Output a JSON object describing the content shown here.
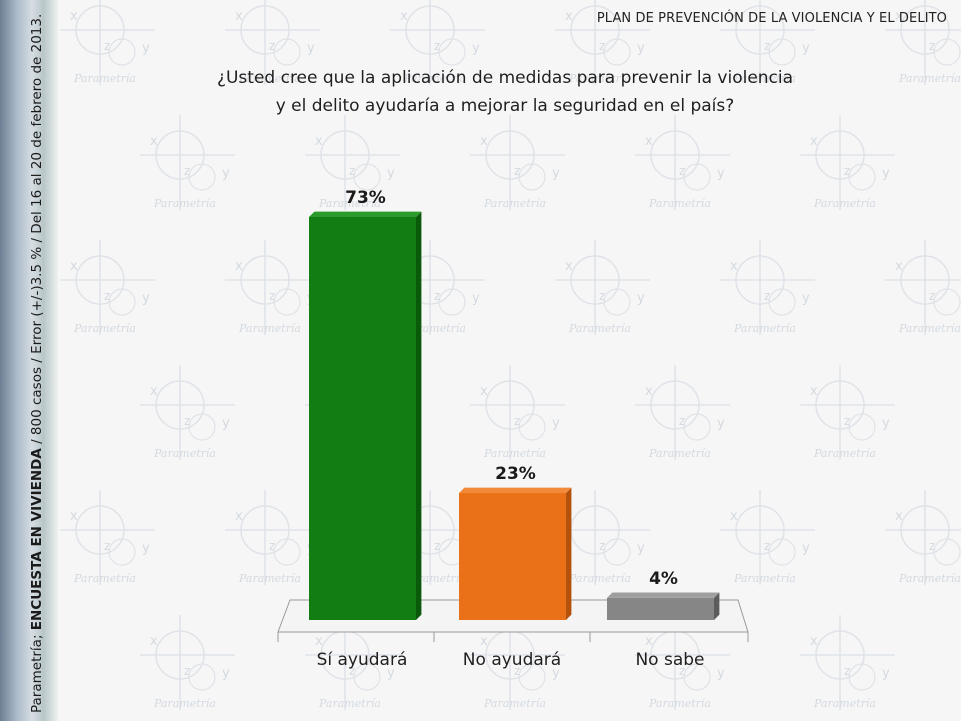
{
  "sidebar": {
    "source_prefix": "Parametría; ",
    "source_bold": "ENCUESTA EN VIVIENDA",
    "source_suffix": " / 800 casos / Error (+/-)3.5 % / Del 16 al 20 de febrero de 2013."
  },
  "header": {
    "title": "PLAN DE PREVENCIÓN DE LA VIOLENCIA Y EL DELITO"
  },
  "question": {
    "line1": "¿Usted cree que la aplicación de medidas para prevenir la violencia",
    "line2": "y el delito ayudaría a mejorar la seguridad en el país?"
  },
  "watermark": {
    "text": "Parametría",
    "axis_x": "x",
    "axis_y": "y",
    "axis_z": "z"
  },
  "colors": {
    "si": "#127d12",
    "no": "#ea7117",
    "ns": "#868686",
    "background": "#f6f6f6"
  },
  "chart_data": {
    "type": "bar",
    "categories": [
      "Sí ayudará",
      "No ayudará",
      "No sabe"
    ],
    "values": [
      73,
      23,
      4
    ],
    "data_labels": [
      "73%",
      "23%",
      "4%"
    ],
    "unit": "%",
    "ylim": [
      0,
      73
    ],
    "grid": false,
    "three_d": true
  }
}
